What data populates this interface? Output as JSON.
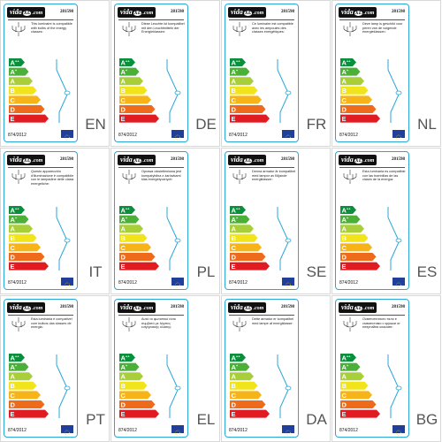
{
  "brand": {
    "vida": "vida",
    "xl": "XL",
    "suffix": ".com"
  },
  "product_code": "281598",
  "regulation": "874/2012",
  "classes": [
    {
      "letter": "A",
      "sup": "++",
      "color": "#0a8f3c"
    },
    {
      "letter": "A",
      "sup": "+",
      "color": "#4caf38"
    },
    {
      "letter": "A",
      "sup": "",
      "color": "#a8cf3a"
    },
    {
      "letter": "B",
      "sup": "",
      "color": "#f2e41a"
    },
    {
      "letter": "C",
      "sup": "",
      "color": "#f7b418"
    },
    {
      "letter": "D",
      "sup": "",
      "color": "#ef6b1c"
    },
    {
      "letter": "E",
      "sup": "",
      "color": "#e01b22"
    }
  ],
  "labels": [
    {
      "lang": "EN",
      "text": "This luminaire is compatible with bulbs of the energy classes:"
    },
    {
      "lang": "DE",
      "text": "Diese Leuchte ist kompatibel mit den Leuchtmitteln der Energieklassen:"
    },
    {
      "lang": "FR",
      "text": "Ce luminaire est compatible avec les ampoules des classes énergétiques:"
    },
    {
      "lang": "NL",
      "text": "Deze lamp is geschikt voor peren van de volgende energieklassen:"
    },
    {
      "lang": "IT",
      "text": "Questo apparecchio d'illuminazione è compatibile con le lampadine delle classi energetiche:"
    },
    {
      "lang": "PL",
      "text": "Oprawa oświetleniowa jest kompatybilna z żarówkami klas energetycznych:"
    },
    {
      "lang": "SE",
      "text": "Denna armatur är kompatibel med lampor av följande energiklasser:"
    },
    {
      "lang": "ES",
      "text": "Esta luminaria es compatible con las bombillas de las clases de la energía:"
    },
    {
      "lang": "PT",
      "text": "Esta luminária é compatível com bulbos das classes de energia:"
    },
    {
      "lang": "EL",
      "text": "Αυτό το φωτιστικό είναι συμβατό με λάμπες ενεργειακής κλάσης:"
    },
    {
      "lang": "DA",
      "text": "Dette armatur er kompatibel med lampe af energiklasse:"
    },
    {
      "lang": "BG",
      "text": "Осветителното тяло е съвместимо с крушки от енергийни класове:"
    }
  ]
}
